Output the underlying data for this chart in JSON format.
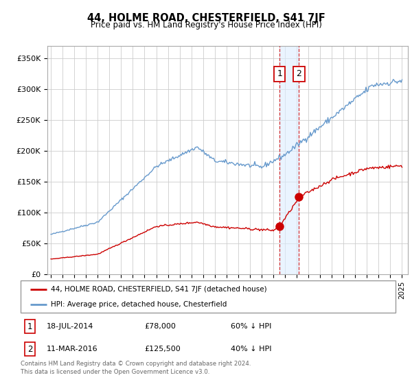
{
  "title": "44, HOLME ROAD, CHESTERFIELD, S41 7JF",
  "subtitle": "Price paid vs. HM Land Registry's House Price Index (HPI)",
  "ylabel_ticks": [
    "£0",
    "£50K",
    "£100K",
    "£150K",
    "£200K",
    "£250K",
    "£300K",
    "£350K"
  ],
  "ytick_values": [
    0,
    50000,
    100000,
    150000,
    200000,
    250000,
    300000,
    350000
  ],
  "ylim": [
    0,
    370000
  ],
  "xlim_start": 1994.7,
  "xlim_end": 2025.5,
  "legend_line1": "44, HOLME ROAD, CHESTERFIELD, S41 7JF (detached house)",
  "legend_line2": "HPI: Average price, detached house, Chesterfield",
  "transaction1_date": "18-JUL-2014",
  "transaction1_price": "£78,000",
  "transaction1_hpi": "60% ↓ HPI",
  "transaction1_year": 2014.54,
  "transaction1_value": 78000,
  "transaction2_date": "11-MAR-2016",
  "transaction2_price": "£125,500",
  "transaction2_hpi": "40% ↓ HPI",
  "transaction2_year": 2016.19,
  "transaction2_value": 125500,
  "line_red_color": "#cc0000",
  "line_blue_color": "#6699cc",
  "shade_blue_color": "#ddeeff",
  "background_color": "#ffffff",
  "grid_color": "#cccccc",
  "footnote": "Contains HM Land Registry data © Crown copyright and database right 2024.\nThis data is licensed under the Open Government Licence v3.0."
}
